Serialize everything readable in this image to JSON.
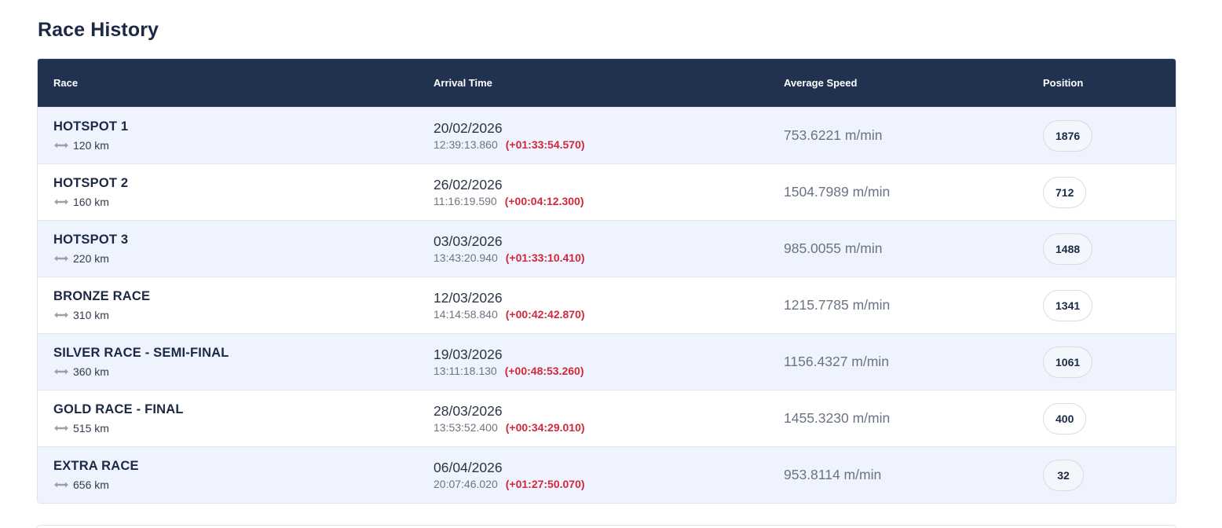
{
  "section": {
    "title": "Race History"
  },
  "table": {
    "headers": {
      "race": "Race",
      "arrival": "Arrival Time",
      "speed": "Average Speed",
      "position": "Position"
    },
    "rows": [
      {
        "name": "HOTSPOT 1",
        "distance": "120 km",
        "date": "20/02/2026",
        "time": "12:39:13.860",
        "diff": "(+01:33:54.570)",
        "speed": "753.6221 m/min",
        "position": "1876"
      },
      {
        "name": "HOTSPOT 2",
        "distance": "160 km",
        "date": "26/02/2026",
        "time": "11:16:19.590",
        "diff": "(+00:04:12.300)",
        "speed": "1504.7989 m/min",
        "position": "712"
      },
      {
        "name": "HOTSPOT 3",
        "distance": "220 km",
        "date": "03/03/2026",
        "time": "13:43:20.940",
        "diff": "(+01:33:10.410)",
        "speed": "985.0055 m/min",
        "position": "1488"
      },
      {
        "name": "BRONZE RACE",
        "distance": "310 km",
        "date": "12/03/2026",
        "time": "14:14:58.840",
        "diff": "(+00:42:42.870)",
        "speed": "1215.7785 m/min",
        "position": "1341"
      },
      {
        "name": "SILVER RACE - SEMI-FINAL",
        "distance": "360 km",
        "date": "19/03/2026",
        "time": "13:11:18.130",
        "diff": "(+00:48:53.260)",
        "speed": "1156.4327 m/min",
        "position": "1061"
      },
      {
        "name": "GOLD RACE - FINAL",
        "distance": "515 km",
        "date": "28/03/2026",
        "time": "13:53:52.400",
        "diff": "(+00:34:29.010)",
        "speed": "1455.3230 m/min",
        "position": "400"
      },
      {
        "name": "EXTRA RACE",
        "distance": "656 km",
        "date": "06/04/2026",
        "time": "20:07:46.020",
        "diff": "(+01:27:50.070)",
        "speed": "953.8114 m/min",
        "position": "32"
      }
    ]
  },
  "icons": {
    "distance": "double-arrow-icon"
  },
  "colors": {
    "header_bg": "#213251",
    "diff_red": "#d2283b",
    "alt_row": "#eef3fd"
  }
}
